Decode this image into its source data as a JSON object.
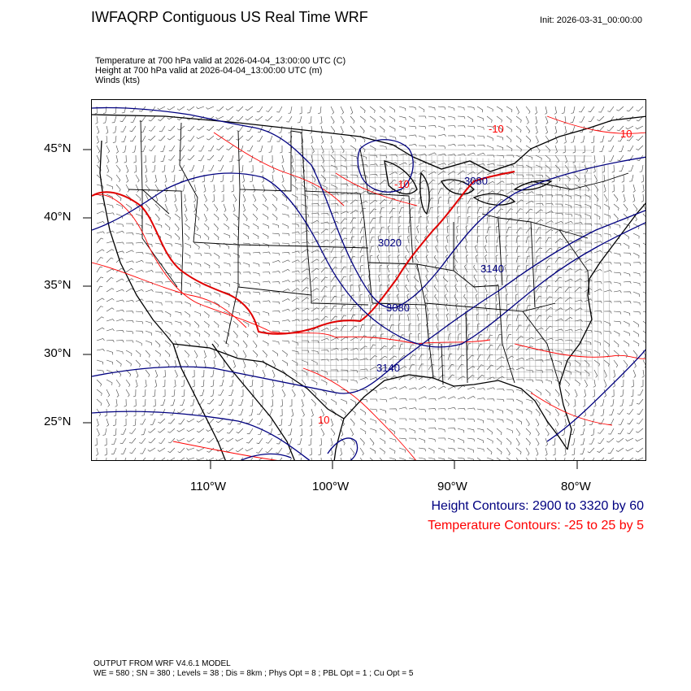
{
  "header": {
    "title": "IWFAQRP Contiguous US Real Time WRF",
    "init": "Init: 2026-03-31_00:00:00",
    "subtitle_lines": [
      "Temperature at 700 hPa valid at 2026-04-04_13:00:00 UTC   (C)",
      "Height at 700 hPa valid at 2026-04-04_13:00:00 UTC   (m)",
      "Winds   (kts)"
    ]
  },
  "axes": {
    "lat_labels": [
      "45°N",
      "40°N",
      "35°N",
      "30°N",
      "25°N"
    ],
    "lon_labels": [
      "110°W",
      "100°W",
      "90°W",
      "80°W"
    ]
  },
  "contour_labels": {
    "height": [
      "3020",
      "3080",
      "3140",
      "3140",
      "3080"
    ],
    "temperature": [
      "10",
      "-10",
      "10",
      "-10"
    ]
  },
  "legend": {
    "height": "Height Contours: 2900 to 3320 by 60",
    "temperature": "Temperature Contours: -25 to 25 by 5"
  },
  "colors": {
    "height": "#000080",
    "temperature": "#ff0000",
    "borders": "#000000"
  },
  "footer": {
    "line1": "OUTPUT FROM WRF V4.6.1 MODEL",
    "line2": "WE = 580 ; SN = 380 ; Levels = 38 ; Dis = 8km ; Phys Opt = 8 ; PBL Opt = 1 ; Cu Opt = 5"
  }
}
